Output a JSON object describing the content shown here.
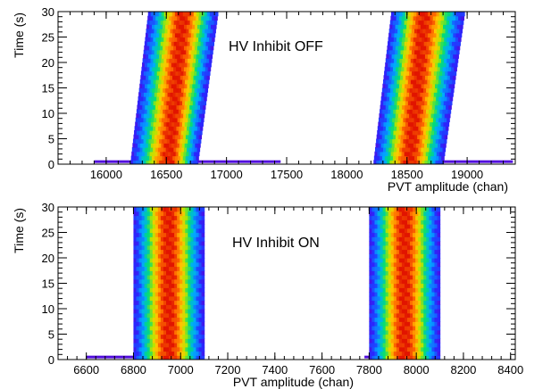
{
  "chart_data": [
    {
      "type": "heatmap",
      "annotation": "HV Inhibit OFF",
      "xlabel": "PVT amplitude (chan)",
      "ylabel": "Time (s)",
      "xlim": [
        15600,
        19400
      ],
      "ylim": [
        0,
        30
      ],
      "x_ticks": [
        16000,
        16500,
        17000,
        17500,
        18000,
        18500,
        19000
      ],
      "y_ticks": [
        0,
        5,
        10,
        15,
        20,
        25,
        30
      ],
      "colormap": "rainbow (purple-low to red-high)",
      "bands": [
        {
          "t_start": 0,
          "t_end": 30,
          "x_left_start": 16200,
          "x_left_end": 16350,
          "x_right_start": 16760,
          "x_right_end": 16930,
          "x_peak_start": 16520,
          "x_peak_end": 16640
        },
        {
          "t_start": 0,
          "t_end": 30,
          "x_left_start": 18220,
          "x_left_end": 18370,
          "x_right_start": 18800,
          "x_right_end": 18980,
          "x_peak_start": 18520,
          "x_peak_end": 18640
        }
      ],
      "baseline_tails": [
        {
          "t": 0.5,
          "x_from": 15900,
          "x_to": 16200
        },
        {
          "t": 0.5,
          "x_from": 16760,
          "x_to": 17450
        },
        {
          "t": 0.5,
          "x_from": 18800,
          "x_to": 19380
        }
      ]
    },
    {
      "type": "heatmap",
      "annotation": "HV Inhibit ON",
      "xlabel": "PVT amplitude (chan)",
      "ylabel": "Time (s)",
      "xlim": [
        6480,
        8420
      ],
      "ylim": [
        0,
        30
      ],
      "x_ticks": [
        6600,
        6800,
        7000,
        7200,
        7400,
        7600,
        7800,
        8000,
        8200,
        8400
      ],
      "y_ticks": [
        0,
        5,
        10,
        15,
        20,
        25,
        30
      ],
      "colormap": "rainbow (purple-low to red-high)",
      "bands": [
        {
          "t_start": 0,
          "t_end": 30,
          "x_left_start": 6800,
          "x_left_end": 6800,
          "x_right_start": 7100,
          "x_right_end": 7100,
          "x_peak_start": 6950,
          "x_peak_end": 6950
        },
        {
          "t_start": 0,
          "t_end": 30,
          "x_left_start": 7800,
          "x_left_end": 7800,
          "x_right_start": 8100,
          "x_right_end": 8100,
          "x_peak_start": 7950,
          "x_peak_end": 7950
        }
      ],
      "baseline_tails": [
        {
          "t": 0.5,
          "x_from": 6600,
          "x_to": 6800
        },
        {
          "t": 0.5,
          "x_from": 7780,
          "x_to": 7800
        }
      ]
    }
  ]
}
